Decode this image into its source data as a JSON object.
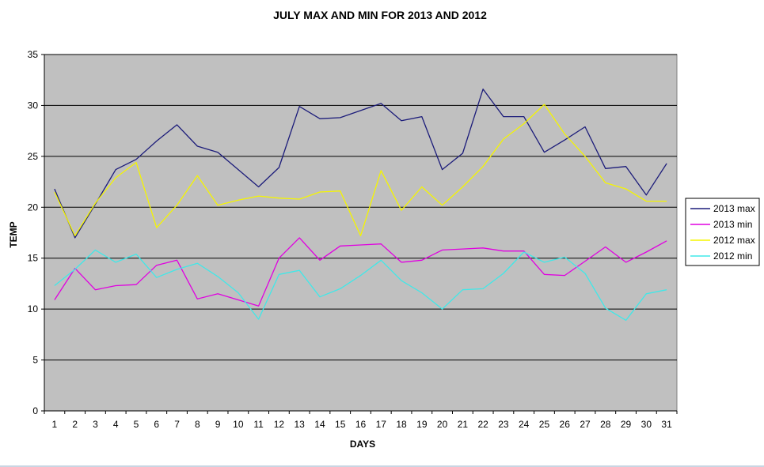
{
  "chart_data": {
    "type": "line",
    "title": "JULY MAX AND MIN FOR 2013 AND 2012",
    "xlabel": "DAYS",
    "ylabel": "TEMP",
    "x": [
      1,
      2,
      3,
      4,
      5,
      6,
      7,
      8,
      9,
      10,
      11,
      12,
      13,
      14,
      15,
      16,
      17,
      18,
      19,
      20,
      21,
      22,
      23,
      24,
      25,
      26,
      27,
      28,
      29,
      30,
      31
    ],
    "ylim": [
      0,
      35
    ],
    "yticks": [
      0,
      5,
      10,
      15,
      20,
      25,
      30,
      35
    ],
    "grid": true,
    "legend_position": "right",
    "plot_background": "#c0c0c0",
    "series": [
      {
        "name": "2013 max",
        "color": "#1c1c7a",
        "values": [
          21.8,
          17.0,
          20.3,
          23.7,
          24.7,
          26.5,
          28.1,
          26.0,
          25.4,
          23.7,
          22.0,
          23.9,
          29.9,
          28.7,
          28.8,
          29.5,
          30.2,
          28.5,
          28.9,
          23.7,
          25.3,
          31.6,
          28.9,
          28.9,
          25.4,
          26.6,
          27.9,
          23.8,
          24.0,
          21.2,
          24.3
        ]
      },
      {
        "name": "2013 min",
        "color": "#e000e0",
        "values": [
          10.9,
          14.0,
          11.9,
          12.3,
          12.4,
          14.3,
          14.8,
          11.0,
          11.5,
          10.9,
          10.3,
          15.0,
          17.0,
          14.8,
          16.2,
          16.3,
          16.4,
          14.6,
          14.8,
          15.8,
          15.9,
          16.0,
          15.7,
          15.7,
          13.4,
          13.3,
          14.7,
          16.1,
          14.6,
          15.6,
          16.7
        ]
      },
      {
        "name": "2012 max",
        "color": "#f5f500",
        "values": [
          21.5,
          17.2,
          20.4,
          22.9,
          24.4,
          18.0,
          20.2,
          23.1,
          20.2,
          20.7,
          21.1,
          20.9,
          20.8,
          21.5,
          21.6,
          17.2,
          23.6,
          19.7,
          22.0,
          20.2,
          22.0,
          24.0,
          26.7,
          28.2,
          30.1,
          27.2,
          25.0,
          22.4,
          21.8,
          20.6,
          20.6
        ]
      },
      {
        "name": "2012 min",
        "color": "#40e8e8",
        "values": [
          12.3,
          13.9,
          15.8,
          14.6,
          15.4,
          13.1,
          13.9,
          14.5,
          13.2,
          11.6,
          9.0,
          13.4,
          13.8,
          11.2,
          12.0,
          13.3,
          14.8,
          12.8,
          11.6,
          10.0,
          11.9,
          12.0,
          13.5,
          15.6,
          14.6,
          15.1,
          13.5,
          10.1,
          8.9,
          11.5,
          11.9
        ]
      }
    ]
  }
}
